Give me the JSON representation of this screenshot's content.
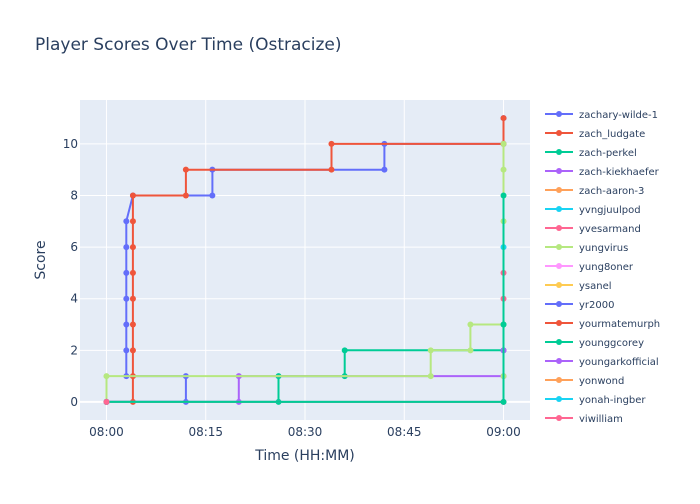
{
  "chart_data": {
    "type": "line",
    "line_shape": "step",
    "title": "Player Scores Over Time (Ostracize)",
    "xlabel": "Time (HH:MM)",
    "ylabel": "Score",
    "x_unit": "time HH:MM",
    "xlim": [
      "07:56",
      "09:04"
    ],
    "ylim": [
      -0.7,
      11.7
    ],
    "x_ticks": [
      "08:00",
      "08:15",
      "08:30",
      "08:45",
      "09:00"
    ],
    "y_ticks": [
      0,
      2,
      4,
      6,
      8,
      10
    ],
    "grid": true,
    "legend_position": "right",
    "background_color": "#e5ecf6",
    "series": [
      {
        "name": "zachary-wilde-1",
        "color": "#636efa",
        "points": [
          [
            "08:00",
            0
          ],
          [
            "08:12",
            0
          ],
          [
            "08:12",
            1
          ],
          [
            "08:03",
            1
          ],
          [
            "08:03",
            2
          ],
          [
            "08:03",
            3
          ],
          [
            "08:03",
            4
          ],
          [
            "08:03",
            5
          ],
          [
            "08:03",
            6
          ],
          [
            "08:03",
            7
          ],
          [
            "08:04",
            8
          ],
          [
            "08:16",
            8
          ],
          [
            "08:16",
            9
          ],
          [
            "08:42",
            9
          ],
          [
            "08:42",
            10
          ],
          [
            "09:00",
            10
          ],
          [
            "09:00",
            11
          ]
        ]
      },
      {
        "name": "zach_ludgate",
        "color": "#ef553b",
        "points": [
          [
            "08:00",
            0
          ],
          [
            "08:04",
            0
          ],
          [
            "08:04",
            1
          ],
          [
            "08:04",
            2
          ],
          [
            "08:04",
            3
          ],
          [
            "08:04",
            4
          ],
          [
            "08:04",
            5
          ],
          [
            "08:04",
            6
          ],
          [
            "08:04",
            7
          ],
          [
            "08:04",
            8
          ],
          [
            "08:12",
            8
          ],
          [
            "08:12",
            9
          ],
          [
            "08:34",
            9
          ],
          [
            "08:34",
            10
          ],
          [
            "09:00",
            10
          ],
          [
            "09:00",
            11
          ]
        ]
      },
      {
        "name": "zach-perkel",
        "color": "#00cc96",
        "points": [
          [
            "08:00",
            0
          ],
          [
            "08:26",
            0
          ],
          [
            "08:26",
            1
          ],
          [
            "08:36",
            1
          ],
          [
            "08:36",
            2
          ],
          [
            "09:00",
            2
          ],
          [
            "09:00",
            3
          ]
        ]
      },
      {
        "name": "zach-kiekhaefer",
        "color": "#ab63fa",
        "points": [
          [
            "08:00",
            0
          ],
          [
            "08:20",
            0
          ],
          [
            "08:20",
            1
          ],
          [
            "09:00",
            1
          ],
          [
            "09:00",
            2
          ]
        ]
      },
      {
        "name": "zach-aaron-3",
        "color": "#ffa15a",
        "points": [
          [
            "08:00",
            0
          ]
        ]
      },
      {
        "name": "yvngjuulpod",
        "color": "#19d3f3",
        "points": [
          [
            "08:00",
            0
          ],
          [
            "09:00",
            0
          ],
          [
            "09:00",
            6
          ]
        ]
      },
      {
        "name": "yvesarmand",
        "color": "#ff6692",
        "points": [
          [
            "08:00",
            0
          ],
          [
            "09:00",
            0
          ],
          [
            "09:00",
            4
          ],
          [
            "09:00",
            5
          ]
        ]
      },
      {
        "name": "yungvirus",
        "color": "#b6e880",
        "points": [
          [
            "08:00",
            0
          ],
          [
            "08:00",
            1
          ],
          [
            "08:49",
            1
          ],
          [
            "08:49",
            2
          ],
          [
            "08:55",
            2
          ],
          [
            "08:55",
            3
          ],
          [
            "09:00",
            3
          ],
          [
            "09:00",
            1
          ],
          [
            "09:00",
            7
          ],
          [
            "09:00",
            9
          ],
          [
            "09:00",
            10
          ]
        ]
      },
      {
        "name": "yung8oner",
        "color": "#ff97ff",
        "points": [
          [
            "08:00",
            0
          ]
        ]
      },
      {
        "name": "ysanel",
        "color": "#fecb52",
        "points": [
          [
            "08:00",
            0
          ]
        ]
      },
      {
        "name": "yr2000",
        "color": "#636efa",
        "points": [
          [
            "08:00",
            0
          ]
        ]
      },
      {
        "name": "yourmatemurph",
        "color": "#ef553b",
        "points": [
          [
            "08:00",
            0
          ]
        ]
      },
      {
        "name": "younggcorey",
        "color": "#00cc96",
        "points": [
          [
            "08:00",
            0
          ],
          [
            "09:00",
            0
          ],
          [
            "09:00",
            3
          ],
          [
            "09:00",
            8
          ]
        ]
      },
      {
        "name": "youngarkofficial",
        "color": "#ab63fa",
        "points": [
          [
            "08:00",
            0
          ]
        ]
      },
      {
        "name": "yonwond",
        "color": "#ffa15a",
        "points": [
          [
            "08:00",
            0
          ]
        ]
      },
      {
        "name": "yonah-ingber",
        "color": "#19d3f3",
        "points": [
          [
            "08:00",
            0
          ]
        ]
      },
      {
        "name": "yiwilliam",
        "color": "#ff6692",
        "points": [
          [
            "08:00",
            0
          ]
        ]
      }
    ]
  }
}
